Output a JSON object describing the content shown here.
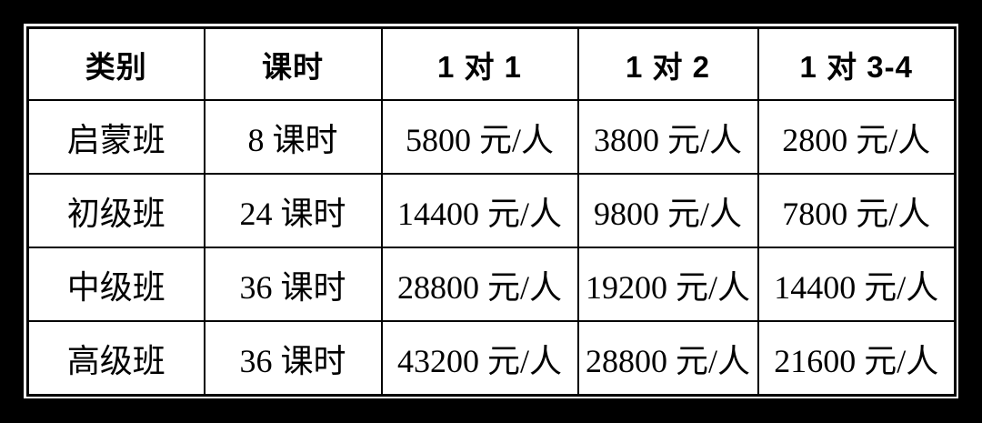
{
  "table": {
    "headers": [
      "类别",
      "课时",
      "1 对 1",
      "1 对 2",
      "1 对 3-4"
    ],
    "rows": [
      {
        "cells": [
          "启蒙班",
          "8 课时",
          "5800 元/人",
          "3800 元/人",
          "2800 元/人"
        ]
      },
      {
        "cells": [
          "初级班",
          "24 课时",
          "14400 元/人",
          "9800 元/人",
          "7800 元/人"
        ]
      },
      {
        "cells": [
          "中级班",
          "36 课时",
          "28800 元/人",
          "19200 元/人",
          "14400 元/人"
        ]
      },
      {
        "cells": [
          "高级班",
          "36 课时",
          "43200 元/人",
          "28800 元/人",
          "21600 元/人"
        ]
      }
    ],
    "colors": {
      "frame": "#000000",
      "panel_background": "#ffffff",
      "border": "#000000",
      "text": "#000000"
    }
  }
}
